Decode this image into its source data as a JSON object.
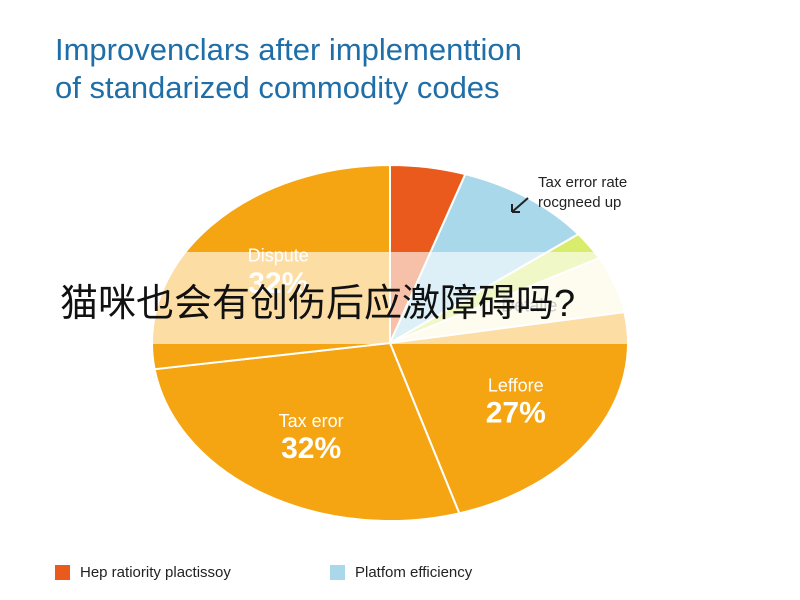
{
  "chart_data": {
    "type": "pie",
    "title": [
      "Improvenclars after implementtion",
      "of standarized commodity codes"
    ],
    "annotation": [
      "Tax error rate",
      "rocgneed up"
    ],
    "categories": [
      null,
      null,
      null,
      "Detalle",
      "Leffore",
      "Tax eror",
      "Dispute"
    ],
    "values": [
      6,
      11,
      3,
      6,
      27,
      32,
      32
    ],
    "value_labels": [
      null,
      null,
      null,
      null,
      "27%",
      "32%",
      "32%"
    ],
    "colors": [
      "#ea5a1c",
      "#a8d8ea",
      "#d9ec6c",
      "#fdf3d6",
      "#f6a512",
      "#f6a512",
      "#f6a512"
    ],
    "legend": [
      {
        "name": "Hep ratiority plactissoy",
        "color": "#ea5a1c"
      },
      {
        "name": "Platfom efficiency",
        "color": "#a8d8ea"
      }
    ]
  },
  "overlay": {
    "text": "猫咪也会有创伤后应激障碍吗?"
  }
}
